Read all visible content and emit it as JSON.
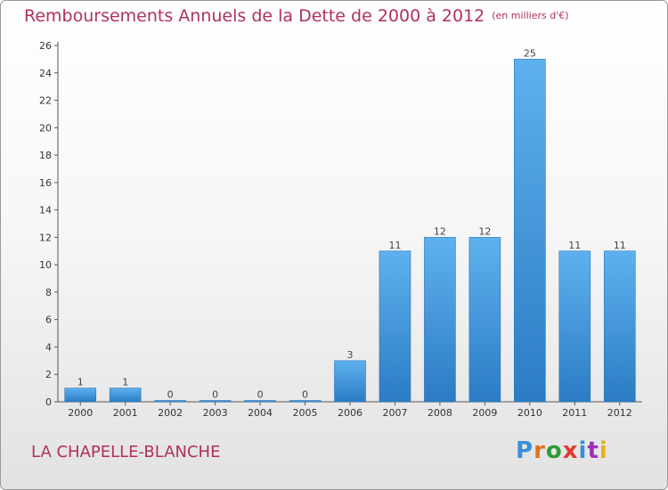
{
  "header": {
    "title": "Remboursements Annuels de la Dette de 2000 à 2012",
    "unit": "(en milliers d'€)"
  },
  "commune": "LA CHAPELLE-BLANCHE",
  "logo": {
    "text": "Proxiti",
    "colors": [
      "#3a8fd8",
      "#e0731f",
      "#2f9a3c",
      "#e23b2e",
      "#3a8fd8",
      "#9c2fb0",
      "#e3b21a"
    ]
  },
  "chart_data": {
    "type": "bar",
    "title": "Remboursements Annuels de la Dette de 2000 à 2012",
    "categories": [
      "2000",
      "2001",
      "2002",
      "2003",
      "2004",
      "2005",
      "2006",
      "2007",
      "2008",
      "2009",
      "2010",
      "2011",
      "2012"
    ],
    "values": [
      1,
      1,
      0,
      0,
      0,
      0,
      3,
      11,
      12,
      12,
      25,
      11,
      11
    ],
    "data_labels": [
      "1",
      "1",
      "0",
      "0",
      "0",
      "0",
      "3",
      "11",
      "12",
      "12",
      "25",
      "11",
      "11"
    ],
    "ylim": [
      0,
      26
    ],
    "yticks": [
      0,
      2,
      4,
      6,
      8,
      10,
      12,
      14,
      16,
      18,
      20,
      22,
      24,
      26
    ],
    "grid": false,
    "bar_color": "#4a9fe0"
  }
}
